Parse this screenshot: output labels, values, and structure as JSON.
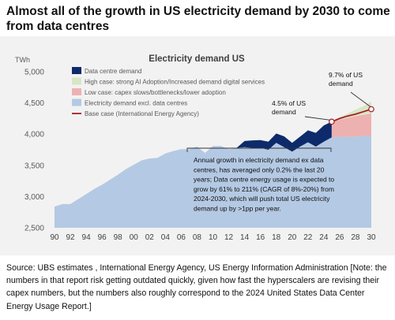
{
  "headline": "Almost all of the growth in US electricity demand by 2030 to come from data centres",
  "source": "Source: UBS estimates , International Energy Agency, US Energy Information Administration [Note: the numbers in that report risk getting outdated quickly, given how fast the hyperscalers are revising their capex numbers, but the numbers also roughly correspond to the 2024 United States Data Center Energy Usage Report.]",
  "colors": {
    "excl": "#b4c9e3",
    "datacentre": "#0d2a6b",
    "low": "#eeb1b1",
    "high": "#d8e6c4",
    "base": "#a41e22"
  },
  "chart_data": {
    "type": "area",
    "title": "Electricity demand US",
    "unit_label": "TWh",
    "ylim": [
      2500,
      5000
    ],
    "yticks": [
      2500,
      3000,
      3500,
      4000,
      4500,
      5000
    ],
    "ytick_labels": [
      "2,500",
      "3,000",
      "3,500",
      "4,000",
      "4,500",
      "5,000"
    ],
    "xlim": [
      1989.5,
      2030.5
    ],
    "xticks": [
      1990,
      1992,
      1994,
      1996,
      1998,
      2000,
      2002,
      2004,
      2006,
      2008,
      2010,
      2012,
      2014,
      2016,
      2018,
      2020,
      2022,
      2024,
      2026,
      2028,
      2030
    ],
    "xtick_labels": [
      "90",
      "92",
      "94",
      "96",
      "98",
      "00",
      "02",
      "04",
      "06",
      "08",
      "10",
      "12",
      "14",
      "16",
      "18",
      "20",
      "22",
      "24",
      "26",
      "28",
      "30"
    ],
    "grid": false,
    "legend_position": "top-left",
    "legend": [
      {
        "key": "datacentre",
        "label": "Data centre demand",
        "kind": "box"
      },
      {
        "key": "high",
        "label": "High case: strong AI Adoption/Increased demand digital services",
        "kind": "box"
      },
      {
        "key": "low",
        "label": "Low case: capex slows/bottlenecks/lower adoption",
        "kind": "box"
      },
      {
        "key": "excl",
        "label": "Electricity demand excl. data centres",
        "kind": "box"
      },
      {
        "key": "base",
        "label": "Base case (International Energy Agency)",
        "kind": "line"
      }
    ],
    "series": [
      {
        "name": "Electricity demand excl. data centres",
        "x": [
          1990,
          1991,
          1992,
          1993,
          1994,
          1995,
          1996,
          1997,
          1998,
          1999,
          2000,
          2001,
          2002,
          2003,
          2004,
          2005,
          2006,
          2007,
          2008,
          2009,
          2010,
          2011,
          2012,
          2013,
          2014,
          2015,
          2016,
          2017,
          2018,
          2019,
          2020,
          2021,
          2022,
          2023,
          2024,
          2025,
          2026,
          2027,
          2028,
          2029,
          2030
        ],
        "values": [
          2840,
          2880,
          2880,
          2960,
          3040,
          3120,
          3190,
          3270,
          3350,
          3440,
          3510,
          3580,
          3610,
          3620,
          3690,
          3730,
          3760,
          3760,
          3800,
          3700,
          3810,
          3810,
          3760,
          3780,
          3790,
          3780,
          3780,
          3750,
          3860,
          3790,
          3720,
          3800,
          3870,
          3800,
          3880,
          3950,
          3960,
          3960,
          3960,
          3970,
          3970
        ]
      },
      {
        "name": "Data centre demand",
        "x": [
          2013,
          2014,
          2015,
          2016,
          2017,
          2018,
          2019,
          2020,
          2021,
          2022,
          2023,
          2024,
          2025
        ],
        "values": [
          0,
          100,
          120,
          125,
          130,
          150,
          175,
          140,
          160,
          190,
          220,
          260,
          250
        ]
      },
      {
        "name": "Low case: capex slows/bottlenecks/lower adoption",
        "x": [
          2025,
          2026,
          2027,
          2028,
          2029,
          2030
        ],
        "low": [
          4200,
          4230,
          4230,
          4230,
          4240,
          4250
        ],
        "high": [
          4200,
          4230,
          4260,
          4290,
          4310,
          4330
        ]
      },
      {
        "name": "High case: strong AI Adoption/Increased demand digital services",
        "x": [
          2025,
          2026,
          2027,
          2028,
          2029,
          2030
        ],
        "low": [
          4200,
          4230,
          4260,
          4290,
          4310,
          4330
        ],
        "high": [
          4200,
          4270,
          4330,
          4390,
          4450,
          4520
        ]
      },
      {
        "name": "Base case (International Energy Agency)",
        "x": [
          2025,
          2026,
          2027,
          2028,
          2029,
          2030
        ],
        "values": [
          4200,
          4250,
          4290,
          4320,
          4360,
          4400
        ]
      }
    ],
    "annotations": [
      {
        "text": "4.5% of US demand",
        "x": 2025,
        "y": 4200
      },
      {
        "text": "9.7% of US demand",
        "x": 2030,
        "y": 4400
      },
      {
        "text": "Annual growth in electricity demand ex data centres, has averaged only 0.2% the last 20 years; Data centre energy usage is expected to grow by 61% to 211% (CAGR of 8%-20%) from 2024-2030, which will push total US electricity demand up by >1pp per year."
      }
    ]
  }
}
